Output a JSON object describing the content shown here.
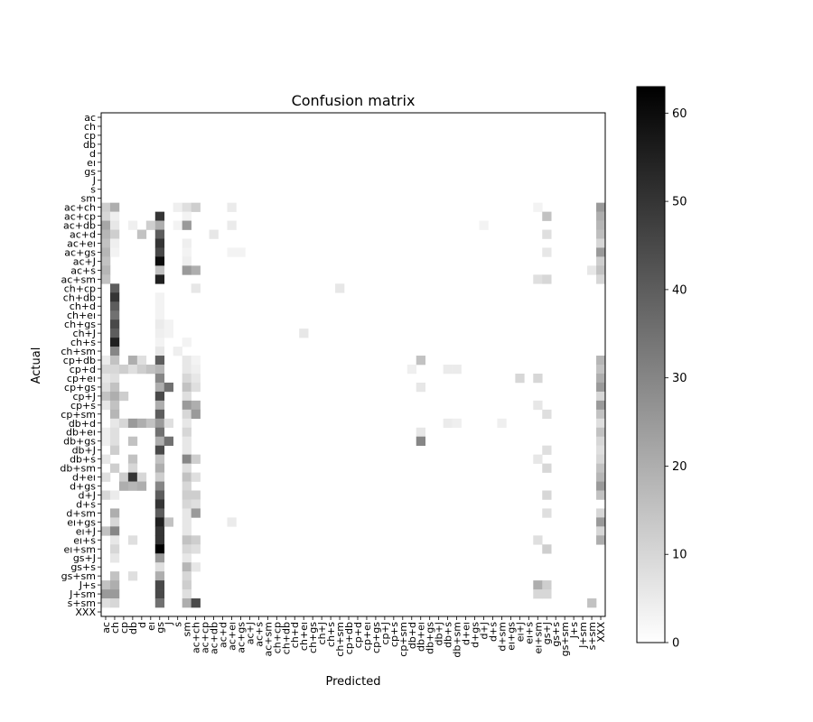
{
  "chart_data": {
    "type": "heatmap",
    "title": "Confusion matrix",
    "xlabel": "Predicted",
    "ylabel": "Actual",
    "labels": [
      "ac",
      "ch",
      "cp",
      "db",
      "d",
      "eı",
      "gs",
      "J",
      "s",
      "sm",
      "ac+ch",
      "ac+cp",
      "ac+db",
      "ac+d",
      "ac+eı",
      "ac+gs",
      "ac+J",
      "ac+s",
      "ac+sm",
      "ch+cp",
      "ch+db",
      "ch+d",
      "ch+eı",
      "ch+gs",
      "ch+J",
      "ch+s",
      "ch+sm",
      "cp+db",
      "cp+d",
      "cp+eı",
      "cp+gs",
      "cp+J",
      "cp+s",
      "cp+sm",
      "db+d",
      "db+eı",
      "db+gs",
      "db+J",
      "db+s",
      "db+sm",
      "d+eı",
      "d+gs",
      "d+J",
      "d+s",
      "d+sm",
      "eı+gs",
      "eı+J",
      "eı+s",
      "eı+sm",
      "gs+J",
      "gs+s",
      "gs+sm",
      "J+s",
      "J+sm",
      "s+sm",
      "XXX"
    ],
    "colorbar": {
      "min": 0,
      "max": 63,
      "ticks": [
        0,
        10,
        20,
        30,
        40,
        50,
        60
      ],
      "colormap": "gray_r"
    },
    "cells": [
      [
        10,
        0,
        12
      ],
      [
        10,
        1,
        20
      ],
      [
        10,
        8,
        4
      ],
      [
        10,
        9,
        8
      ],
      [
        10,
        10,
        12
      ],
      [
        10,
        14,
        5
      ],
      [
        10,
        48,
        3
      ],
      [
        10,
        55,
        25
      ],
      [
        11,
        0,
        10
      ],
      [
        11,
        1,
        4
      ],
      [
        11,
        6,
        50
      ],
      [
        11,
        9,
        3
      ],
      [
        11,
        49,
        15
      ],
      [
        11,
        55,
        20
      ],
      [
        12,
        0,
        22
      ],
      [
        12,
        1,
        6
      ],
      [
        12,
        3,
        4
      ],
      [
        12,
        5,
        12
      ],
      [
        12,
        6,
        20
      ],
      [
        12,
        8,
        3
      ],
      [
        12,
        9,
        25
      ],
      [
        12,
        14,
        5
      ],
      [
        12,
        42,
        3
      ],
      [
        12,
        55,
        18
      ],
      [
        13,
        0,
        18
      ],
      [
        13,
        1,
        12
      ],
      [
        13,
        4,
        15
      ],
      [
        13,
        6,
        40
      ],
      [
        13,
        12,
        6
      ],
      [
        13,
        49,
        8
      ],
      [
        13,
        55,
        16
      ],
      [
        14,
        0,
        15
      ],
      [
        14,
        1,
        4
      ],
      [
        14,
        6,
        50
      ],
      [
        14,
        9,
        4
      ],
      [
        14,
        55,
        10
      ],
      [
        15,
        0,
        18
      ],
      [
        15,
        1,
        3
      ],
      [
        15,
        6,
        45
      ],
      [
        15,
        9,
        3
      ],
      [
        15,
        14,
        3
      ],
      [
        15,
        15,
        3
      ],
      [
        15,
        49,
        6
      ],
      [
        15,
        55,
        25
      ],
      [
        16,
        0,
        15
      ],
      [
        16,
        6,
        60
      ],
      [
        16,
        9,
        4
      ],
      [
        16,
        55,
        12
      ],
      [
        17,
        0,
        18
      ],
      [
        17,
        6,
        15
      ],
      [
        17,
        9,
        25
      ],
      [
        17,
        10,
        20
      ],
      [
        17,
        54,
        6
      ],
      [
        17,
        55,
        15
      ],
      [
        18,
        0,
        15
      ],
      [
        18,
        6,
        55
      ],
      [
        18,
        48,
        8
      ],
      [
        18,
        49,
        10
      ],
      [
        18,
        55,
        10
      ],
      [
        19,
        1,
        40
      ],
      [
        19,
        10,
        6
      ],
      [
        19,
        26,
        6
      ],
      [
        20,
        1,
        50
      ],
      [
        20,
        6,
        3
      ],
      [
        21,
        1,
        40
      ],
      [
        21,
        6,
        3
      ],
      [
        22,
        1,
        35
      ],
      [
        22,
        6,
        3
      ],
      [
        23,
        1,
        45
      ],
      [
        23,
        6,
        5
      ],
      [
        23,
        7,
        3
      ],
      [
        24,
        1,
        40
      ],
      [
        24,
        6,
        4
      ],
      [
        24,
        7,
        3
      ],
      [
        24,
        22,
        6
      ],
      [
        25,
        1,
        55
      ],
      [
        25,
        6,
        3
      ],
      [
        25,
        9,
        3
      ],
      [
        26,
        1,
        30
      ],
      [
        26,
        6,
        6
      ],
      [
        26,
        8,
        4
      ],
      [
        27,
        0,
        5
      ],
      [
        27,
        1,
        15
      ],
      [
        27,
        3,
        20
      ],
      [
        27,
        4,
        8
      ],
      [
        27,
        6,
        40
      ],
      [
        27,
        9,
        6
      ],
      [
        27,
        10,
        3
      ],
      [
        27,
        35,
        15
      ],
      [
        27,
        55,
        18
      ],
      [
        28,
        0,
        10
      ],
      [
        28,
        1,
        10
      ],
      [
        28,
        2,
        12
      ],
      [
        28,
        3,
        8
      ],
      [
        28,
        4,
        12
      ],
      [
        28,
        5,
        15
      ],
      [
        28,
        6,
        18
      ],
      [
        28,
        9,
        6
      ],
      [
        28,
        10,
        4
      ],
      [
        28,
        34,
        4
      ],
      [
        28,
        38,
        5
      ],
      [
        28,
        39,
        5
      ],
      [
        28,
        55,
        15
      ],
      [
        29,
        0,
        6
      ],
      [
        29,
        1,
        8
      ],
      [
        29,
        6,
        30
      ],
      [
        29,
        9,
        10
      ],
      [
        29,
        10,
        6
      ],
      [
        29,
        46,
        10
      ],
      [
        29,
        48,
        10
      ],
      [
        29,
        55,
        20
      ],
      [
        30,
        0,
        8
      ],
      [
        30,
        1,
        15
      ],
      [
        30,
        6,
        20
      ],
      [
        30,
        7,
        35
      ],
      [
        30,
        9,
        15
      ],
      [
        30,
        10,
        8
      ],
      [
        30,
        35,
        6
      ],
      [
        30,
        55,
        25
      ],
      [
        31,
        0,
        15
      ],
      [
        31,
        1,
        20
      ],
      [
        31,
        2,
        12
      ],
      [
        31,
        6,
        45
      ],
      [
        31,
        9,
        8
      ],
      [
        31,
        55,
        10
      ],
      [
        32,
        0,
        6
      ],
      [
        32,
        1,
        15
      ],
      [
        32,
        6,
        20
      ],
      [
        32,
        9,
        25
      ],
      [
        32,
        10,
        20
      ],
      [
        32,
        48,
        6
      ],
      [
        32,
        55,
        25
      ],
      [
        33,
        1,
        18
      ],
      [
        33,
        6,
        40
      ],
      [
        33,
        9,
        10
      ],
      [
        33,
        10,
        25
      ],
      [
        33,
        49,
        8
      ],
      [
        33,
        55,
        15
      ],
      [
        34,
        1,
        6
      ],
      [
        34,
        2,
        10
      ],
      [
        34,
        3,
        25
      ],
      [
        34,
        4,
        20
      ],
      [
        34,
        5,
        15
      ],
      [
        34,
        6,
        25
      ],
      [
        34,
        7,
        8
      ],
      [
        34,
        9,
        6
      ],
      [
        34,
        38,
        5
      ],
      [
        34,
        39,
        4
      ],
      [
        34,
        44,
        4
      ],
      [
        34,
        55,
        8
      ],
      [
        35,
        0,
        4
      ],
      [
        35,
        1,
        8
      ],
      [
        35,
        6,
        35
      ],
      [
        35,
        9,
        10
      ],
      [
        35,
        35,
        6
      ],
      [
        35,
        55,
        15
      ],
      [
        36,
        0,
        4
      ],
      [
        36,
        1,
        8
      ],
      [
        36,
        3,
        15
      ],
      [
        36,
        6,
        20
      ],
      [
        36,
        7,
        35
      ],
      [
        36,
        9,
        6
      ],
      [
        36,
        35,
        30
      ],
      [
        36,
        55,
        10
      ],
      [
        37,
        1,
        12
      ],
      [
        37,
        6,
        45
      ],
      [
        37,
        9,
        6
      ],
      [
        37,
        49,
        8
      ],
      [
        37,
        55,
        8
      ],
      [
        38,
        0,
        6
      ],
      [
        38,
        3,
        15
      ],
      [
        38,
        6,
        15
      ],
      [
        38,
        9,
        30
      ],
      [
        38,
        10,
        12
      ],
      [
        38,
        48,
        6
      ],
      [
        38,
        55,
        10
      ],
      [
        39,
        1,
        12
      ],
      [
        39,
        3,
        10
      ],
      [
        39,
        6,
        20
      ],
      [
        39,
        9,
        8
      ],
      [
        39,
        49,
        10
      ],
      [
        39,
        55,
        15
      ],
      [
        40,
        0,
        8
      ],
      [
        40,
        2,
        12
      ],
      [
        40,
        3,
        50
      ],
      [
        40,
        4,
        10
      ],
      [
        40,
        6,
        12
      ],
      [
        40,
        9,
        15
      ],
      [
        40,
        10,
        8
      ],
      [
        40,
        55,
        18
      ],
      [
        41,
        2,
        20
      ],
      [
        41,
        3,
        18
      ],
      [
        41,
        4,
        20
      ],
      [
        41,
        6,
        30
      ],
      [
        41,
        9,
        10
      ],
      [
        41,
        55,
        25
      ],
      [
        42,
        0,
        10
      ],
      [
        42,
        1,
        5
      ],
      [
        42,
        6,
        40
      ],
      [
        42,
        9,
        12
      ],
      [
        42,
        10,
        12
      ],
      [
        42,
        49,
        10
      ],
      [
        42,
        55,
        15
      ],
      [
        43,
        6,
        50
      ],
      [
        43,
        9,
        10
      ],
      [
        43,
        10,
        8
      ],
      [
        44,
        1,
        20
      ],
      [
        44,
        6,
        40
      ],
      [
        44,
        9,
        6
      ],
      [
        44,
        10,
        25
      ],
      [
        44,
        49,
        8
      ],
      [
        44,
        55,
        10
      ],
      [
        45,
        1,
        10
      ],
      [
        45,
        6,
        55
      ],
      [
        45,
        7,
        15
      ],
      [
        45,
        9,
        6
      ],
      [
        45,
        14,
        5
      ],
      [
        45,
        55,
        25
      ],
      [
        46,
        0,
        15
      ],
      [
        46,
        1,
        30
      ],
      [
        46,
        6,
        50
      ],
      [
        46,
        9,
        6
      ],
      [
        46,
        55,
        10
      ],
      [
        47,
        1,
        6
      ],
      [
        47,
        3,
        8
      ],
      [
        47,
        6,
        50
      ],
      [
        47,
        9,
        15
      ],
      [
        47,
        10,
        12
      ],
      [
        47,
        48,
        8
      ],
      [
        47,
        55,
        20
      ],
      [
        48,
        1,
        10
      ],
      [
        48,
        6,
        63
      ],
      [
        48,
        9,
        10
      ],
      [
        48,
        10,
        8
      ],
      [
        48,
        49,
        12
      ],
      [
        49,
        1,
        6
      ],
      [
        49,
        6,
        25
      ],
      [
        49,
        9,
        6
      ],
      [
        50,
        6,
        8
      ],
      [
        50,
        9,
        18
      ],
      [
        50,
        10,
        6
      ],
      [
        51,
        1,
        15
      ],
      [
        51,
        3,
        8
      ],
      [
        51,
        6,
        20
      ],
      [
        51,
        9,
        10
      ],
      [
        52,
        0,
        15
      ],
      [
        52,
        1,
        20
      ],
      [
        52,
        6,
        45
      ],
      [
        52,
        9,
        12
      ],
      [
        52,
        48,
        20
      ],
      [
        52,
        49,
        12
      ],
      [
        53,
        0,
        25
      ],
      [
        53,
        1,
        25
      ],
      [
        53,
        6,
        45
      ],
      [
        53,
        9,
        8
      ],
      [
        53,
        48,
        10
      ],
      [
        53,
        49,
        10
      ],
      [
        54,
        0,
        8
      ],
      [
        54,
        1,
        10
      ],
      [
        54,
        6,
        35
      ],
      [
        54,
        9,
        20
      ],
      [
        54,
        10,
        45
      ],
      [
        54,
        54,
        15
      ]
    ]
  }
}
